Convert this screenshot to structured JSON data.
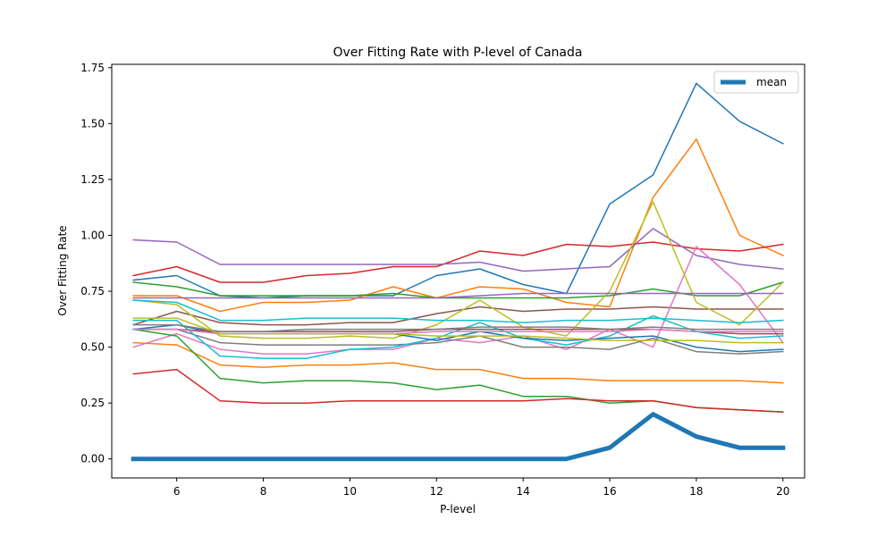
{
  "chart_data": {
    "type": "line",
    "title": "Over Fitting Rate with P-level of Canada",
    "xlabel": "P-level",
    "ylabel": "Over Fitting Rate",
    "xlim": [
      4.5,
      20.5
    ],
    "ylim": [
      -0.085,
      1.765
    ],
    "xticks": [
      6,
      8,
      10,
      12,
      14,
      16,
      18,
      20
    ],
    "yticks": [
      0.0,
      0.25,
      0.5,
      0.75,
      1.0,
      1.25,
      1.5,
      1.75
    ],
    "ytick_labels": [
      "0.00",
      "0.25",
      "0.50",
      "0.75",
      "1.00",
      "1.25",
      "1.50",
      "1.75"
    ],
    "grid": false,
    "legend_position": "top-right",
    "x": [
      5,
      6,
      7,
      8,
      9,
      10,
      11,
      12,
      13,
      14,
      15,
      16,
      17,
      18,
      19,
      20
    ],
    "series": [
      {
        "color": "#1f77b4",
        "values": [
          0.8,
          0.82,
          0.73,
          0.72,
          0.73,
          0.73,
          0.73,
          0.82,
          0.85,
          0.78,
          0.74,
          1.14,
          1.27,
          1.68,
          1.51,
          1.41
        ]
      },
      {
        "color": "#ff7f0e",
        "values": [
          0.73,
          0.73,
          0.66,
          0.7,
          0.7,
          0.71,
          0.77,
          0.72,
          0.77,
          0.76,
          0.7,
          0.68,
          1.17,
          1.43,
          1.0,
          0.91
        ]
      },
      {
        "color": "#2ca02c",
        "values": [
          0.79,
          0.77,
          0.73,
          0.73,
          0.73,
          0.73,
          0.74,
          0.72,
          0.72,
          0.72,
          0.72,
          0.73,
          0.76,
          0.73,
          0.73,
          0.79
        ]
      },
      {
        "color": "#d62728",
        "values": [
          0.82,
          0.86,
          0.79,
          0.79,
          0.82,
          0.83,
          0.86,
          0.86,
          0.93,
          0.91,
          0.96,
          0.95,
          0.97,
          0.94,
          0.93,
          0.96
        ]
      },
      {
        "color": "#9467bd",
        "values": [
          0.98,
          0.97,
          0.87,
          0.87,
          0.87,
          0.87,
          0.87,
          0.87,
          0.88,
          0.84,
          0.85,
          0.86,
          1.03,
          0.91,
          0.87,
          0.85
        ]
      },
      {
        "color": "#8c564b",
        "values": [
          0.6,
          0.66,
          0.61,
          0.6,
          0.6,
          0.61,
          0.61,
          0.65,
          0.68,
          0.66,
          0.67,
          0.67,
          0.68,
          0.67,
          0.67,
          0.67
        ]
      },
      {
        "color": "#e377c2",
        "values": [
          0.5,
          0.56,
          0.49,
          0.47,
          0.47,
          0.49,
          0.49,
          0.54,
          0.52,
          0.55,
          0.49,
          0.58,
          0.5,
          0.95,
          0.78,
          0.52
        ]
      },
      {
        "color": "#7f7f7f",
        "values": [
          0.58,
          0.58,
          0.52,
          0.51,
          0.51,
          0.51,
          0.51,
          0.52,
          0.55,
          0.5,
          0.5,
          0.49,
          0.54,
          0.48,
          0.47,
          0.48
        ]
      },
      {
        "color": "#bcbd22",
        "values": [
          0.71,
          0.69,
          0.55,
          0.54,
          0.54,
          0.55,
          0.54,
          0.6,
          0.71,
          0.59,
          0.55,
          0.75,
          1.15,
          0.7,
          0.6,
          0.79
        ]
      },
      {
        "color": "#17becf",
        "values": [
          0.62,
          0.62,
          0.46,
          0.45,
          0.45,
          0.49,
          0.5,
          0.54,
          0.61,
          0.54,
          0.51,
          0.55,
          0.64,
          0.57,
          0.54,
          0.55
        ]
      },
      {
        "color": "#1f77b4",
        "values": [
          0.58,
          0.6,
          0.56,
          0.56,
          0.56,
          0.56,
          0.56,
          0.53,
          0.57,
          0.54,
          0.53,
          0.54,
          0.55,
          0.5,
          0.48,
          0.49
        ]
      },
      {
        "color": "#ff7f0e",
        "values": [
          0.52,
          0.51,
          0.42,
          0.41,
          0.42,
          0.42,
          0.43,
          0.4,
          0.4,
          0.36,
          0.36,
          0.35,
          0.35,
          0.35,
          0.35,
          0.34
        ]
      },
      {
        "color": "#2ca02c",
        "values": [
          0.58,
          0.55,
          0.36,
          0.34,
          0.35,
          0.35,
          0.34,
          0.31,
          0.33,
          0.28,
          0.28,
          0.25,
          0.26,
          0.23,
          0.22,
          0.21
        ]
      },
      {
        "color": "#d62728",
        "values": [
          0.38,
          0.4,
          0.26,
          0.25,
          0.25,
          0.26,
          0.26,
          0.26,
          0.26,
          0.26,
          0.27,
          0.26,
          0.26,
          0.23,
          0.22,
          0.21
        ]
      },
      {
        "color": "#9467bd",
        "values": [
          0.72,
          0.72,
          0.72,
          0.72,
          0.72,
          0.72,
          0.72,
          0.72,
          0.73,
          0.74,
          0.74,
          0.74,
          0.74,
          0.74,
          0.74,
          0.74
        ]
      },
      {
        "color": "#8c564b",
        "values": [
          0.58,
          0.58,
          0.57,
          0.57,
          0.57,
          0.57,
          0.57,
          0.58,
          0.58,
          0.58,
          0.58,
          0.58,
          0.58,
          0.57,
          0.56,
          0.56
        ]
      },
      {
        "color": "#e377c2",
        "values": [
          0.58,
          0.58,
          0.56,
          0.56,
          0.56,
          0.56,
          0.56,
          0.57,
          0.57,
          0.57,
          0.57,
          0.57,
          0.58,
          0.57,
          0.57,
          0.57
        ]
      },
      {
        "color": "#7f7f7f",
        "values": [
          0.6,
          0.6,
          0.57,
          0.57,
          0.58,
          0.58,
          0.58,
          0.58,
          0.59,
          0.59,
          0.59,
          0.58,
          0.59,
          0.58,
          0.58,
          0.58
        ]
      },
      {
        "color": "#bcbd22",
        "values": [
          0.63,
          0.63,
          0.56,
          0.56,
          0.56,
          0.56,
          0.56,
          0.55,
          0.55,
          0.55,
          0.54,
          0.53,
          0.53,
          0.53,
          0.52,
          0.52
        ]
      },
      {
        "color": "#17becf",
        "values": [
          0.71,
          0.7,
          0.62,
          0.62,
          0.63,
          0.63,
          0.63,
          0.62,
          0.62,
          0.61,
          0.62,
          0.62,
          0.63,
          0.62,
          0.61,
          0.62
        ]
      },
      {
        "name": "mean",
        "color": "#1f77b4",
        "width": 5,
        "values": [
          0.0,
          0.0,
          0.0,
          0.0,
          0.0,
          0.0,
          0.0,
          0.0,
          0.0,
          0.0,
          0.0,
          0.05,
          0.2,
          0.1,
          0.05,
          0.05
        ]
      }
    ],
    "legend": [
      {
        "label": "mean",
        "color": "#1f77b4"
      }
    ]
  }
}
